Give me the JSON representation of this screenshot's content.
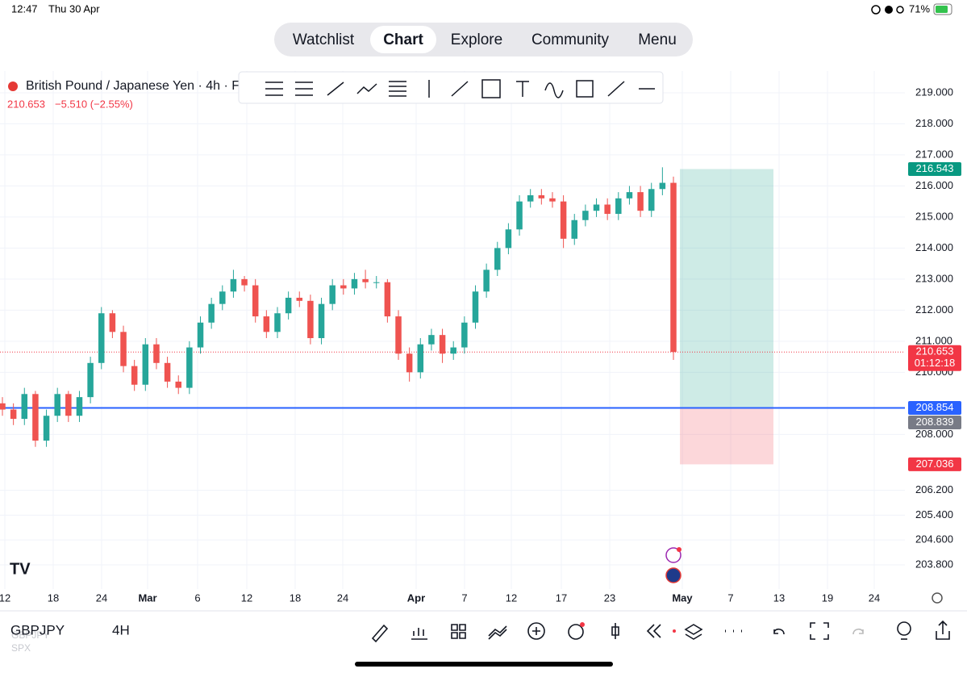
{
  "status_bar": {
    "time": "12:47",
    "date": "Thu 30 Apr",
    "battery": "71%"
  },
  "nav_tabs": [
    "Watchlist",
    "Chart",
    "Explore",
    "Community",
    "Menu"
  ],
  "active_tab": "Chart",
  "chart_data": {
    "type": "candlestick",
    "title": "British Pound / Japanese Yen · 4h · F",
    "last_price": "210.653",
    "change": "−5.510 (−2.55%)",
    "up_color": "#26a69a",
    "down_color": "#ef5350",
    "ylim": [
      203.02,
      219.7
    ],
    "yticks": [
      {
        "value": 219,
        "label": "219.000"
      },
      {
        "value": 218,
        "label": "218.000"
      },
      {
        "value": 217,
        "label": "217.000"
      },
      {
        "value": 216,
        "label": "216.000"
      },
      {
        "value": 215,
        "label": "215.000"
      },
      {
        "value": 214,
        "label": "214.000"
      },
      {
        "value": 213,
        "label": "213.000"
      },
      {
        "value": 212,
        "label": "212.000"
      },
      {
        "value": 211,
        "label": "211.000"
      },
      {
        "value": 210,
        "label": "210.000"
      },
      {
        "value": 208,
        "label": "208.000"
      },
      {
        "value": 206.2,
        "label": "206.200"
      },
      {
        "value": 205.4,
        "label": "205.400"
      },
      {
        "value": 204.6,
        "label": "204.600"
      },
      {
        "value": 203.8,
        "label": "203.800"
      }
    ],
    "x_labels": [
      "12",
      "18",
      "24",
      "Mar",
      "6",
      "12",
      "18",
      "24",
      "Apr",
      "7",
      "12",
      "17",
      "23",
      "May",
      "7",
      "13",
      "19",
      "24"
    ],
    "candles": [
      [
        209.0,
        209.2,
        208.6,
        208.8
      ],
      [
        208.8,
        209.0,
        208.3,
        208.5
      ],
      [
        208.5,
        209.5,
        208.3,
        209.3
      ],
      [
        209.3,
        209.4,
        207.6,
        207.8
      ],
      [
        207.8,
        208.8,
        207.6,
        208.6
      ],
      [
        208.6,
        209.5,
        208.4,
        209.3
      ],
      [
        209.3,
        209.4,
        208.4,
        208.6
      ],
      [
        208.6,
        209.4,
        208.4,
        209.2
      ],
      [
        209.2,
        210.5,
        209.0,
        210.3
      ],
      [
        210.3,
        212.1,
        210.1,
        211.9
      ],
      [
        211.9,
        212.0,
        211.1,
        211.3
      ],
      [
        211.3,
        211.5,
        210.0,
        210.2
      ],
      [
        210.2,
        210.4,
        209.4,
        209.6
      ],
      [
        209.6,
        211.1,
        209.4,
        210.9
      ],
      [
        210.9,
        211.1,
        210.1,
        210.3
      ],
      [
        210.3,
        210.5,
        209.5,
        209.7
      ],
      [
        209.7,
        209.9,
        209.3,
        209.5
      ],
      [
        209.5,
        211.0,
        209.3,
        210.8
      ],
      [
        210.8,
        211.8,
        210.6,
        211.6
      ],
      [
        211.6,
        212.4,
        211.4,
        212.2
      ],
      [
        212.2,
        212.8,
        212.0,
        212.6
      ],
      [
        212.6,
        213.3,
        212.4,
        213.0
      ],
      [
        213.0,
        213.1,
        212.6,
        212.8
      ],
      [
        212.8,
        213.0,
        211.6,
        211.8
      ],
      [
        211.8,
        212.0,
        211.1,
        211.3
      ],
      [
        211.3,
        212.1,
        211.1,
        211.9
      ],
      [
        211.9,
        212.6,
        211.7,
        212.4
      ],
      [
        212.4,
        212.6,
        212.1,
        212.3
      ],
      [
        212.3,
        212.5,
        210.9,
        211.1
      ],
      [
        211.1,
        212.4,
        210.9,
        212.2
      ],
      [
        212.2,
        213.0,
        212.0,
        212.8
      ],
      [
        212.8,
        213.0,
        212.5,
        212.7
      ],
      [
        212.7,
        213.2,
        212.5,
        213.0
      ],
      [
        213.0,
        213.3,
        212.7,
        212.9
      ],
      [
        212.9,
        213.1,
        212.7,
        212.9
      ],
      [
        212.9,
        213.0,
        211.6,
        211.8
      ],
      [
        211.8,
        212.0,
        210.4,
        210.6
      ],
      [
        210.6,
        210.8,
        209.7,
        210.0
      ],
      [
        210.0,
        211.1,
        209.8,
        210.9
      ],
      [
        210.9,
        211.4,
        210.7,
        211.2
      ],
      [
        211.2,
        211.4,
        210.3,
        210.6
      ],
      [
        210.6,
        211.0,
        210.4,
        210.8
      ],
      [
        210.8,
        211.8,
        210.6,
        211.6
      ],
      [
        211.6,
        212.8,
        211.4,
        212.6
      ],
      [
        212.6,
        213.5,
        212.4,
        213.3
      ],
      [
        213.3,
        214.2,
        213.1,
        214.0
      ],
      [
        214.0,
        214.8,
        213.8,
        214.6
      ],
      [
        214.6,
        215.7,
        214.4,
        215.5
      ],
      [
        215.5,
        215.9,
        215.3,
        215.7
      ],
      [
        215.7,
        215.9,
        215.4,
        215.6
      ],
      [
        215.6,
        215.8,
        215.3,
        215.5
      ],
      [
        215.5,
        215.7,
        214.0,
        214.3
      ],
      [
        214.3,
        215.1,
        214.1,
        214.9
      ],
      [
        214.9,
        215.4,
        214.7,
        215.2
      ],
      [
        215.2,
        215.6,
        215.0,
        215.4
      ],
      [
        215.4,
        215.6,
        214.9,
        215.1
      ],
      [
        215.1,
        215.8,
        214.9,
        215.6
      ],
      [
        215.6,
        216.0,
        215.4,
        215.8
      ],
      [
        215.8,
        216.0,
        215.0,
        215.2
      ],
      [
        215.2,
        216.1,
        215.0,
        215.9
      ],
      [
        215.9,
        216.6,
        215.7,
        216.1
      ],
      [
        216.1,
        216.3,
        210.4,
        210.653
      ]
    ],
    "position": {
      "target": 216.543,
      "entry": 208.854,
      "stop": 207.036
    },
    "price_labels": [
      {
        "value": 216.543,
        "label": "216.543",
        "color": "#089981"
      },
      {
        "value": 210.653,
        "label": "210.653",
        "color": "#f23645"
      },
      {
        "value": 208.854,
        "label": "208.854",
        "color": "#2962ff"
      },
      {
        "value": 208.839,
        "label": "208.839",
        "color": "#787b86"
      },
      {
        "value": 207.036,
        "label": "207.036",
        "color": "#f23645"
      }
    ],
    "countdown": "01:12:18",
    "horizontal_line": 208.854,
    "last_price_line": 210.653
  },
  "bottom_bar": {
    "symbol": "GBPJPY",
    "interval": "4H",
    "watermark": [
      "GBPJPY",
      "SPX"
    ]
  }
}
